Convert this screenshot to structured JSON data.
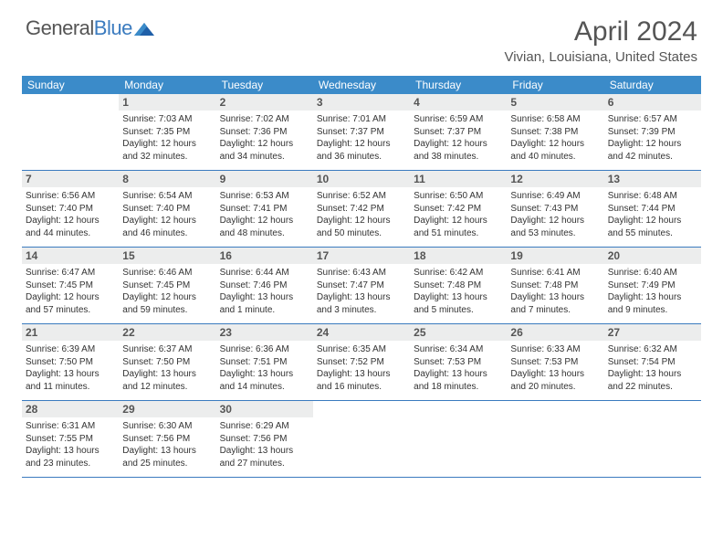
{
  "logo": {
    "word1": "General",
    "word2": "Blue"
  },
  "title": "April 2024",
  "location": "Vivian, Louisiana, United States",
  "colors": {
    "header_bg": "#3b8bc9",
    "header_text": "#ffffff",
    "daynum_bg": "#eceded",
    "border": "#3b7bbf",
    "text": "#333333",
    "title_text": "#555555"
  },
  "typography": {
    "month_title_fontsize": 30,
    "location_fontsize": 15,
    "dayheader_fontsize": 12,
    "daynum_fontsize": 12,
    "body_fontsize": 10
  },
  "day_names": [
    "Sunday",
    "Monday",
    "Tuesday",
    "Wednesday",
    "Thursday",
    "Friday",
    "Saturday"
  ],
  "weeks": [
    [
      {
        "n": "",
        "empty": true
      },
      {
        "n": "1",
        "sr": "Sunrise: 7:03 AM",
        "ss": "Sunset: 7:35 PM",
        "d1": "Daylight: 12 hours",
        "d2": "and 32 minutes."
      },
      {
        "n": "2",
        "sr": "Sunrise: 7:02 AM",
        "ss": "Sunset: 7:36 PM",
        "d1": "Daylight: 12 hours",
        "d2": "and 34 minutes."
      },
      {
        "n": "3",
        "sr": "Sunrise: 7:01 AM",
        "ss": "Sunset: 7:37 PM",
        "d1": "Daylight: 12 hours",
        "d2": "and 36 minutes."
      },
      {
        "n": "4",
        "sr": "Sunrise: 6:59 AM",
        "ss": "Sunset: 7:37 PM",
        "d1": "Daylight: 12 hours",
        "d2": "and 38 minutes."
      },
      {
        "n": "5",
        "sr": "Sunrise: 6:58 AM",
        "ss": "Sunset: 7:38 PM",
        "d1": "Daylight: 12 hours",
        "d2": "and 40 minutes."
      },
      {
        "n": "6",
        "sr": "Sunrise: 6:57 AM",
        "ss": "Sunset: 7:39 PM",
        "d1": "Daylight: 12 hours",
        "d2": "and 42 minutes."
      }
    ],
    [
      {
        "n": "7",
        "sr": "Sunrise: 6:56 AM",
        "ss": "Sunset: 7:40 PM",
        "d1": "Daylight: 12 hours",
        "d2": "and 44 minutes."
      },
      {
        "n": "8",
        "sr": "Sunrise: 6:54 AM",
        "ss": "Sunset: 7:40 PM",
        "d1": "Daylight: 12 hours",
        "d2": "and 46 minutes."
      },
      {
        "n": "9",
        "sr": "Sunrise: 6:53 AM",
        "ss": "Sunset: 7:41 PM",
        "d1": "Daylight: 12 hours",
        "d2": "and 48 minutes."
      },
      {
        "n": "10",
        "sr": "Sunrise: 6:52 AM",
        "ss": "Sunset: 7:42 PM",
        "d1": "Daylight: 12 hours",
        "d2": "and 50 minutes."
      },
      {
        "n": "11",
        "sr": "Sunrise: 6:50 AM",
        "ss": "Sunset: 7:42 PM",
        "d1": "Daylight: 12 hours",
        "d2": "and 51 minutes."
      },
      {
        "n": "12",
        "sr": "Sunrise: 6:49 AM",
        "ss": "Sunset: 7:43 PM",
        "d1": "Daylight: 12 hours",
        "d2": "and 53 minutes."
      },
      {
        "n": "13",
        "sr": "Sunrise: 6:48 AM",
        "ss": "Sunset: 7:44 PM",
        "d1": "Daylight: 12 hours",
        "d2": "and 55 minutes."
      }
    ],
    [
      {
        "n": "14",
        "sr": "Sunrise: 6:47 AM",
        "ss": "Sunset: 7:45 PM",
        "d1": "Daylight: 12 hours",
        "d2": "and 57 minutes."
      },
      {
        "n": "15",
        "sr": "Sunrise: 6:46 AM",
        "ss": "Sunset: 7:45 PM",
        "d1": "Daylight: 12 hours",
        "d2": "and 59 minutes."
      },
      {
        "n": "16",
        "sr": "Sunrise: 6:44 AM",
        "ss": "Sunset: 7:46 PM",
        "d1": "Daylight: 13 hours",
        "d2": "and 1 minute."
      },
      {
        "n": "17",
        "sr": "Sunrise: 6:43 AM",
        "ss": "Sunset: 7:47 PM",
        "d1": "Daylight: 13 hours",
        "d2": "and 3 minutes."
      },
      {
        "n": "18",
        "sr": "Sunrise: 6:42 AM",
        "ss": "Sunset: 7:48 PM",
        "d1": "Daylight: 13 hours",
        "d2": "and 5 minutes."
      },
      {
        "n": "19",
        "sr": "Sunrise: 6:41 AM",
        "ss": "Sunset: 7:48 PM",
        "d1": "Daylight: 13 hours",
        "d2": "and 7 minutes."
      },
      {
        "n": "20",
        "sr": "Sunrise: 6:40 AM",
        "ss": "Sunset: 7:49 PM",
        "d1": "Daylight: 13 hours",
        "d2": "and 9 minutes."
      }
    ],
    [
      {
        "n": "21",
        "sr": "Sunrise: 6:39 AM",
        "ss": "Sunset: 7:50 PM",
        "d1": "Daylight: 13 hours",
        "d2": "and 11 minutes."
      },
      {
        "n": "22",
        "sr": "Sunrise: 6:37 AM",
        "ss": "Sunset: 7:50 PM",
        "d1": "Daylight: 13 hours",
        "d2": "and 12 minutes."
      },
      {
        "n": "23",
        "sr": "Sunrise: 6:36 AM",
        "ss": "Sunset: 7:51 PM",
        "d1": "Daylight: 13 hours",
        "d2": "and 14 minutes."
      },
      {
        "n": "24",
        "sr": "Sunrise: 6:35 AM",
        "ss": "Sunset: 7:52 PM",
        "d1": "Daylight: 13 hours",
        "d2": "and 16 minutes."
      },
      {
        "n": "25",
        "sr": "Sunrise: 6:34 AM",
        "ss": "Sunset: 7:53 PM",
        "d1": "Daylight: 13 hours",
        "d2": "and 18 minutes."
      },
      {
        "n": "26",
        "sr": "Sunrise: 6:33 AM",
        "ss": "Sunset: 7:53 PM",
        "d1": "Daylight: 13 hours",
        "d2": "and 20 minutes."
      },
      {
        "n": "27",
        "sr": "Sunrise: 6:32 AM",
        "ss": "Sunset: 7:54 PM",
        "d1": "Daylight: 13 hours",
        "d2": "and 22 minutes."
      }
    ],
    [
      {
        "n": "28",
        "sr": "Sunrise: 6:31 AM",
        "ss": "Sunset: 7:55 PM",
        "d1": "Daylight: 13 hours",
        "d2": "and 23 minutes."
      },
      {
        "n": "29",
        "sr": "Sunrise: 6:30 AM",
        "ss": "Sunset: 7:56 PM",
        "d1": "Daylight: 13 hours",
        "d2": "and 25 minutes."
      },
      {
        "n": "30",
        "sr": "Sunrise: 6:29 AM",
        "ss": "Sunset: 7:56 PM",
        "d1": "Daylight: 13 hours",
        "d2": "and 27 minutes."
      },
      {
        "n": "",
        "empty": true
      },
      {
        "n": "",
        "empty": true
      },
      {
        "n": "",
        "empty": true
      },
      {
        "n": "",
        "empty": true
      }
    ]
  ]
}
